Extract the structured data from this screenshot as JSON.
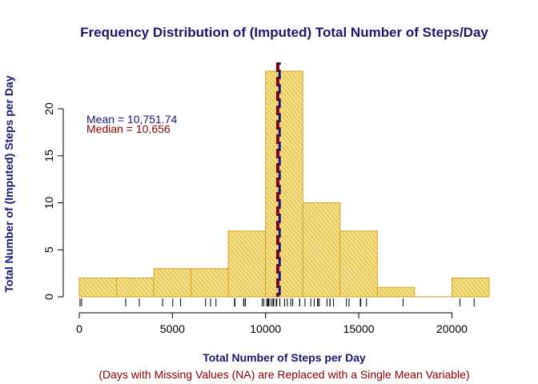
{
  "chart_data": {
    "type": "bar",
    "title": "Frequency Distribution of (Imputed) Total Number of Steps/Day",
    "xlabel": "Total Number of Steps per Day",
    "ylabel": "Total Number of (Imputed) Steps per Day",
    "subtitle": "(Days with Missing Values (NA) are Replaced with a Single Mean Variable)",
    "bins": [
      {
        "from": 0,
        "to": 2000,
        "count": 2
      },
      {
        "from": 2000,
        "to": 4000,
        "count": 2
      },
      {
        "from": 4000,
        "to": 6000,
        "count": 3
      },
      {
        "from": 6000,
        "to": 8000,
        "count": 3
      },
      {
        "from": 8000,
        "to": 10000,
        "count": 7
      },
      {
        "from": 10000,
        "to": 12000,
        "count": 24
      },
      {
        "from": 12000,
        "to": 14000,
        "count": 10
      },
      {
        "from": 14000,
        "to": 16000,
        "count": 7
      },
      {
        "from": 16000,
        "to": 18000,
        "count": 1
      },
      {
        "from": 18000,
        "to": 20000,
        "count": 0
      },
      {
        "from": 20000,
        "to": 22000,
        "count": 2
      }
    ],
    "xlim": [
      0,
      22000
    ],
    "ylim": [
      0,
      24
    ],
    "x_ticks": [
      "0",
      "5000",
      "10000",
      "15000",
      "20000"
    ],
    "y_ticks": [
      "0",
      "5",
      "10",
      "15",
      "20"
    ],
    "mean": 10751.74,
    "median": 10656,
    "mean_label": "Mean = 10,751.74",
    "median_label": "Median = 10,656",
    "rug": [
      41,
      126,
      2492,
      3219,
      4472,
      5018,
      5441,
      6778,
      7047,
      7336,
      8334,
      8355,
      8821,
      8841,
      8918,
      9819,
      9900,
      10056,
      10119,
      10139,
      10183,
      10304,
      10395,
      10439,
      10571,
      10600,
      10765,
      10766,
      11015,
      11162,
      11352,
      11458,
      11834,
      11829,
      12116,
      12426,
      12608,
      12787,
      12811,
      12883,
      13294,
      13452,
      13460,
      13646,
      14339,
      14478,
      15084,
      15098,
      15110,
      15414,
      17382,
      20427,
      21194
    ],
    "bar_fill": "#f2df8a",
    "bar_hatch": "#d4a017",
    "bar_border": "#daa520",
    "mean_line_color": "#191970",
    "median_line_color": "#8b0000",
    "grid": false,
    "legend": "none"
  }
}
